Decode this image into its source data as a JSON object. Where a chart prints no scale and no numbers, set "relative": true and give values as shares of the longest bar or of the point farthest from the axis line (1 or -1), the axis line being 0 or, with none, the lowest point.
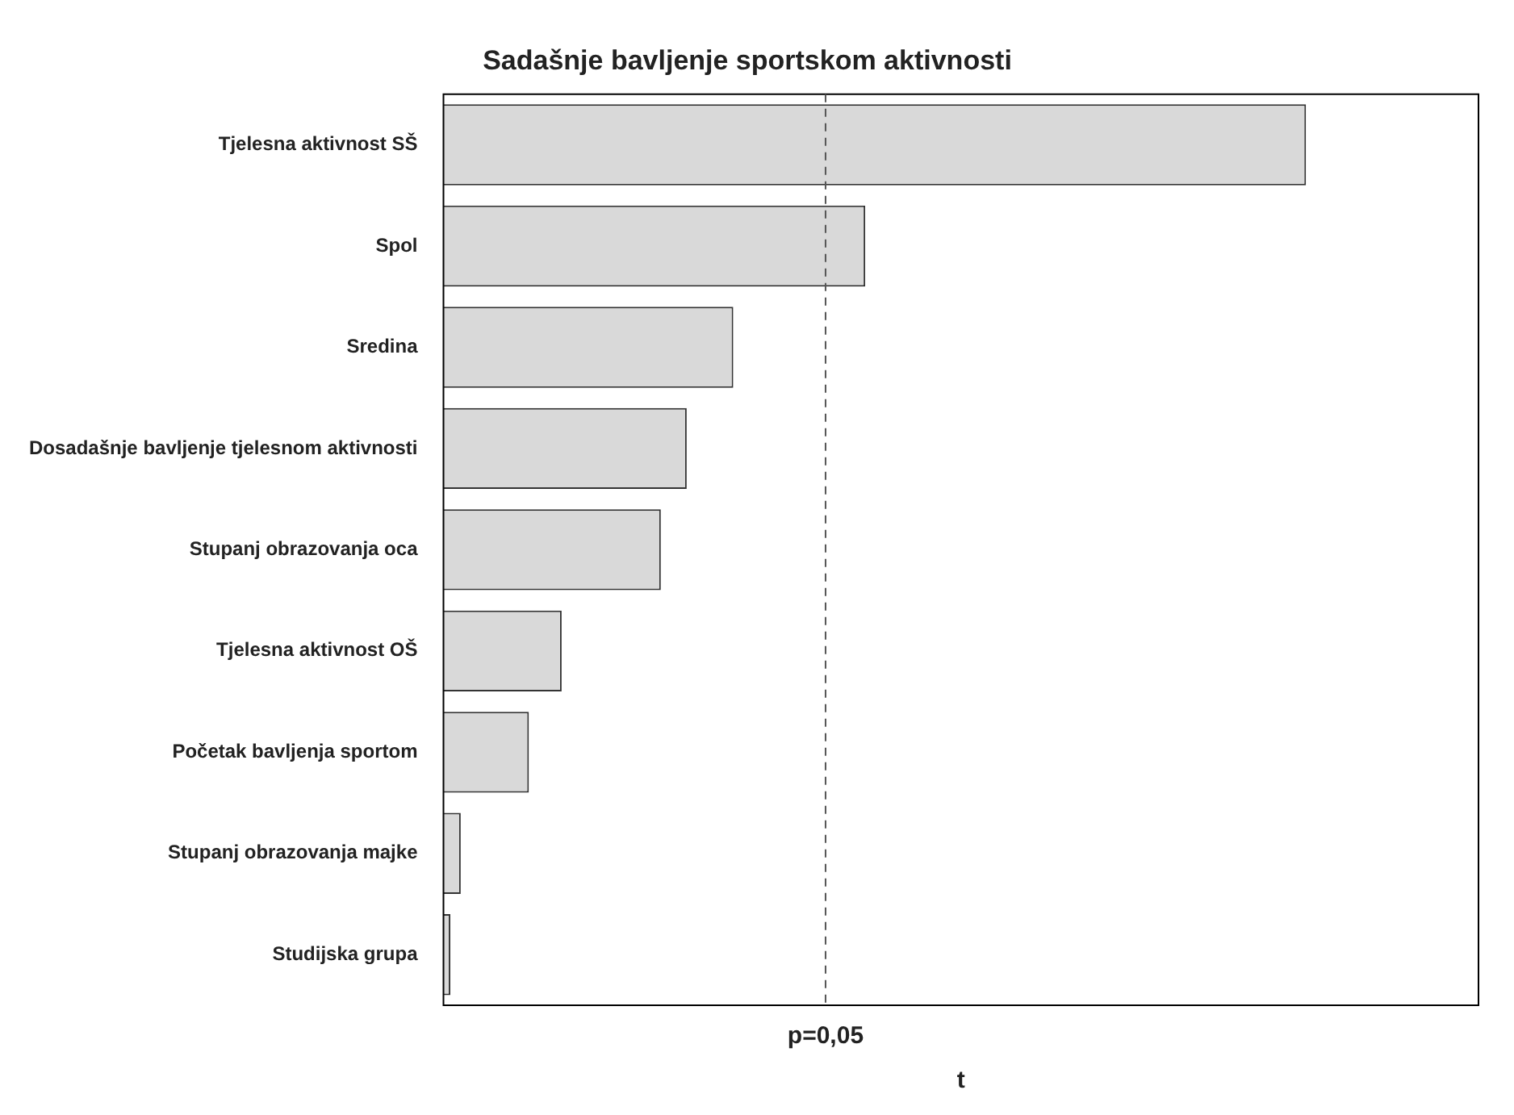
{
  "chart_data": {
    "type": "bar",
    "orientation": "horizontal",
    "relative": true,
    "title": "Sadašnje bavljenje sportskom aktivnosti",
    "xlabel": "t",
    "categories": [
      "Tjelesna aktivnost SŠ",
      "Spol",
      "Sredina",
      "Dosadašnje bavljenje tjelesnom aktivnosti",
      "Stupanj obrazovanja oca",
      "Tjelesna aktivnost OŠ",
      "Početak bavljenja sportom",
      "Stupanj obrazovanja majke",
      "Studijska grupa"
    ],
    "values": [
      1,
      0.489,
      0.336,
      0.282,
      0.252,
      0.137,
      0.099,
      0.02,
      0.008
    ],
    "color": "#d9d9d9",
    "ref_lines": [
      {
        "axis": "x",
        "value": 0.443,
        "line_style": "dashed",
        "color": "#555555"
      }
    ],
    "annotations": [
      "p=0,05"
    ],
    "tick_labels": "y",
    "grid": false,
    "legend": false
  }
}
